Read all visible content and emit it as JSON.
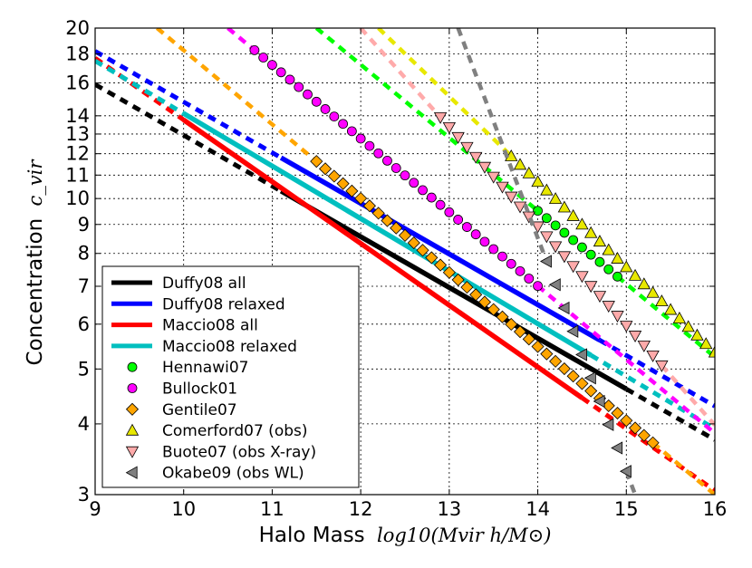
{
  "chart_data": {
    "type": "line",
    "title": "",
    "xlabel": "Halo Mass",
    "xlabel_math": "log10(Mvir h/M⊙)",
    "ylabel": "Concentration",
    "ylabel_math": "c_vir",
    "xscale": "linear",
    "yscale": "log",
    "xlim": [
      9,
      16
    ],
    "ylim": [
      3,
      20
    ],
    "xticks": [
      9,
      10,
      11,
      12,
      13,
      14,
      15,
      16
    ],
    "yticks": [
      3,
      4,
      5,
      6,
      7,
      8,
      9,
      10,
      11,
      12,
      13,
      14,
      16,
      18,
      20
    ],
    "grid": true,
    "legend_position": "lower-left",
    "series": [
      {
        "name": "Duffy08 all",
        "label": "Duffy08 all",
        "color": "#000000",
        "style": "line",
        "solid_range": [
          11.1,
          15.0
        ],
        "points": [
          [
            9.0,
            15.9
          ],
          [
            16.0,
            3.75
          ]
        ]
      },
      {
        "name": "Duffy08 relaxed",
        "label": "Duffy08 relaxed",
        "color": "#0000ff",
        "style": "line",
        "solid_range": [
          11.1,
          14.7
        ],
        "points": [
          [
            9.0,
            18.2
          ],
          [
            16.0,
            4.3
          ]
        ]
      },
      {
        "name": "Maccio08 all",
        "label": "Maccio08 all",
        "color": "#ff0000",
        "style": "line",
        "solid_range": [
          10.0,
          14.5
        ],
        "points": [
          [
            9.0,
            17.7
          ],
          [
            16.0,
            3.05
          ]
        ]
      },
      {
        "name": "Maccio08 relaxed",
        "label": "Maccio08 relaxed",
        "color": "#00bfbf",
        "style": "line",
        "solid_range": [
          10.0,
          14.6
        ],
        "points": [
          [
            9.0,
            17.5
          ],
          [
            16.0,
            3.92
          ]
        ]
      },
      {
        "name": "Hennawi07",
        "label": "Hennawi07",
        "color": "#00ff00",
        "style": "marker",
        "marker": "circle",
        "solid_range": [
          14.0,
          14.9
        ],
        "points": [
          [
            11.5,
            20.0
          ],
          [
            16.0,
            5.25
          ]
        ]
      },
      {
        "name": "Bullock01",
        "label": "Bullock01",
        "color": "#ff00ff",
        "style": "marker",
        "marker": "circle",
        "solid_range": [
          10.8,
          14.0
        ],
        "points": [
          [
            10.5,
            20.0
          ],
          [
            16.0,
            3.85
          ]
        ]
      },
      {
        "name": "Gentile07",
        "label": "Gentile07",
        "color": "#ffa500",
        "style": "marker",
        "marker": "diamond",
        "solid_range": [
          11.5,
          15.3
        ],
        "points": [
          [
            9.7,
            20.0
          ],
          [
            16.0,
            3.0
          ]
        ]
      },
      {
        "name": "Comerford07 (obs)",
        "label": "Comerford07 (obs)",
        "color": "#e8e800",
        "style": "marker",
        "marker": "triangle-up",
        "solid_range": [
          13.7,
          16.0
        ],
        "points": [
          [
            12.2,
            20.0
          ],
          [
            16.0,
            5.35
          ]
        ]
      },
      {
        "name": "Buote07 (obs X-ray)",
        "label": "Buote07 (obs X-ray)",
        "color": "#ffaaaa",
        "style": "marker",
        "marker": "triangle-down",
        "solid_range": [
          12.9,
          15.4
        ],
        "points": [
          [
            12.0,
            20.0
          ],
          [
            16.0,
            3.98
          ]
        ]
      },
      {
        "name": "Okabe09 (obs WL)",
        "label": "Okabe09 (obs WL)",
        "color": "#808080",
        "style": "marker",
        "marker": "triangle-left",
        "solid_range": [
          14.1,
          15.0
        ],
        "points": [
          [
            13.1,
            20.0
          ],
          [
            15.1,
            3.0
          ]
        ]
      }
    ]
  }
}
